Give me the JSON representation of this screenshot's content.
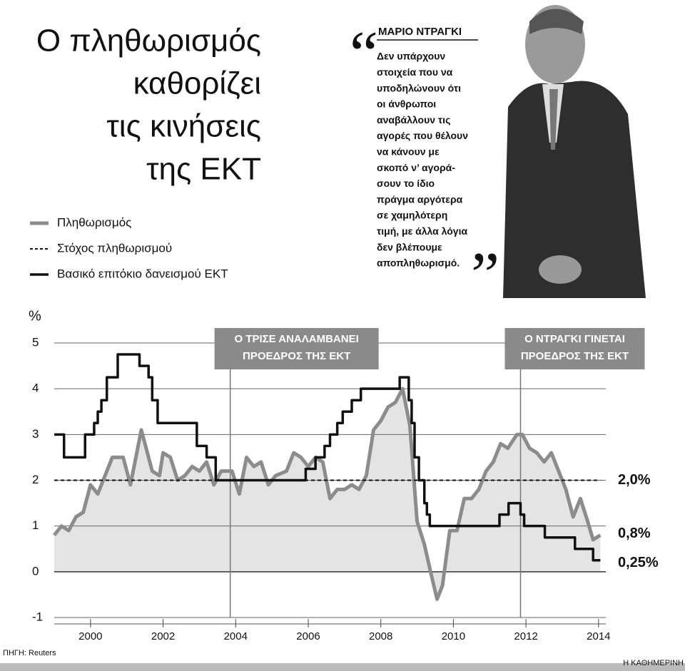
{
  "chart_data": {
    "type": "line",
    "title": [
      "Ο πληθωρισμός",
      "καθορίζει",
      "τις κινήσεις",
      "της ΕΚΤ"
    ],
    "y_label": "%",
    "xlim": [
      1999,
      2014.2
    ],
    "xticks": [
      2000,
      2002,
      2004,
      2006,
      2008,
      2010,
      2012,
      2014
    ],
    "ylim": [
      -1,
      5
    ],
    "yticks": [
      -1,
      0,
      1,
      2,
      3,
      4,
      5
    ],
    "grid": true,
    "series": [
      {
        "name": "Πληθωρισμός",
        "color": "#8c8c8c",
        "fill": "#e4e4e4",
        "width": 5,
        "label": "0,8%",
        "x": [
          1999.0,
          1999.2,
          1999.4,
          1999.6,
          1999.8,
          2000.0,
          2000.2,
          2000.4,
          2000.6,
          2000.9,
          2001.1,
          2001.4,
          2001.7,
          2001.9,
          2002.0,
          2002.2,
          2002.4,
          2002.6,
          2002.8,
          2003.0,
          2003.2,
          2003.4,
          2003.6,
          2003.9,
          2004.1,
          2004.3,
          2004.5,
          2004.7,
          2004.9,
          2005.1,
          2005.4,
          2005.6,
          2005.8,
          2006.0,
          2006.2,
          2006.4,
          2006.6,
          2006.8,
          2007.0,
          2007.2,
          2007.4,
          2007.6,
          2007.8,
          2008.0,
          2008.2,
          2008.4,
          2008.6,
          2008.8,
          2009.0,
          2009.2,
          2009.4,
          2009.55,
          2009.7,
          2009.9,
          2010.1,
          2010.3,
          2010.5,
          2010.7,
          2010.9,
          2011.1,
          2011.3,
          2011.5,
          2011.75,
          2011.9,
          2012.1,
          2012.3,
          2012.5,
          2012.7,
          2012.9,
          2013.1,
          2013.3,
          2013.5,
          2013.7,
          2013.85,
          2014.05
        ],
        "values": [
          0.8,
          1.0,
          0.9,
          1.2,
          1.3,
          1.9,
          1.7,
          2.1,
          2.5,
          2.5,
          1.9,
          3.1,
          2.2,
          2.1,
          2.6,
          2.5,
          2.0,
          2.1,
          2.3,
          2.2,
          2.4,
          1.9,
          2.2,
          2.2,
          1.7,
          2.5,
          2.3,
          2.4,
          1.9,
          2.1,
          2.2,
          2.6,
          2.5,
          2.3,
          2.5,
          2.4,
          1.6,
          1.8,
          1.8,
          1.9,
          1.8,
          2.1,
          3.1,
          3.3,
          3.6,
          3.7,
          4.0,
          3.2,
          1.1,
          0.6,
          -0.1,
          -0.6,
          -0.3,
          0.9,
          0.9,
          1.6,
          1.6,
          1.8,
          2.2,
          2.4,
          2.8,
          2.7,
          3.0,
          3.0,
          2.7,
          2.6,
          2.4,
          2.6,
          2.2,
          1.8,
          1.2,
          1.6,
          1.1,
          0.7,
          0.8
        ]
      },
      {
        "name": "Στόχος πληθωρισμού",
        "color": "#111111",
        "width": 2,
        "dash": true,
        "label": "2,0%",
        "x": [
          1999.0,
          2014.05
        ],
        "values": [
          2.0,
          2.0
        ]
      },
      {
        "name": "Βασικό επιτόκιο δανεισμού ΕΚΤ",
        "color": "#111111",
        "width": 3.5,
        "step": true,
        "label": "0,25%",
        "x": [
          1999.0,
          1999.27,
          1999.85,
          2000.1,
          2000.2,
          2000.3,
          2000.45,
          2000.75,
          2001.35,
          2001.6,
          2001.7,
          2001.85,
          2002.93,
          2003.2,
          2003.45,
          2005.93,
          2006.2,
          2006.45,
          2006.6,
          2006.8,
          2006.95,
          2007.2,
          2007.45,
          2008.52,
          2008.77,
          2008.85,
          2008.93,
          2009.05,
          2009.2,
          2009.27,
          2009.35,
          2011.27,
          2011.52,
          2011.85,
          2011.95,
          2012.52,
          2013.35,
          2013.85,
          2014.05
        ],
        "values": [
          3.0,
          2.5,
          3.0,
          3.25,
          3.5,
          3.75,
          4.25,
          4.75,
          4.5,
          4.25,
          3.75,
          3.25,
          2.75,
          2.5,
          2.0,
          2.25,
          2.5,
          2.75,
          3.0,
          3.25,
          3.5,
          3.75,
          4.0,
          4.25,
          3.75,
          3.25,
          2.5,
          2.0,
          1.5,
          1.25,
          1.0,
          1.25,
          1.5,
          1.25,
          1.0,
          0.75,
          0.5,
          0.25,
          0.25
        ]
      }
    ],
    "annotations": [
      {
        "text": [
          "Ο ΤΡΙΣΕ ΑΝΑΛΑΜΒΑΝΕΙ",
          "ΠΡΟΕΔΡΟΣ ΤΗΣ ΕΚΤ"
        ],
        "x": 2003.85
      },
      {
        "text": [
          "Ο ΝΤΡΑΓΚΙ ΓΙΝΕΤΑΙ",
          "ΠΡΟΕΔΡΟΣ ΤΗΣ ΕΚΤ"
        ],
        "x": 2011.85
      }
    ]
  },
  "quote": {
    "author": "ΜΑΡΙΟ ΝΤΡΑΓΚΙ",
    "lines": [
      "Δεν υπάρχουν",
      "στοιχεία που να",
      "υποδηλώνουν ότι",
      "οι άνθρωποι",
      "αναβάλλουν τις",
      "αγορές που θέλουν",
      "να κάνουν με",
      "σκοπό ν’ αγορά-",
      "σουν το ίδιο",
      "πράγμα αργότερα",
      "σε χαμηλότερη",
      "τιμή, με άλλα λόγια",
      "δεν βλέπουμε",
      "αποπληθωρισμό."
    ]
  },
  "source": "ΠΗΓΗ: Reuters",
  "publisher": "Η ΚΑΘΗΜΕΡΙΝΗ"
}
